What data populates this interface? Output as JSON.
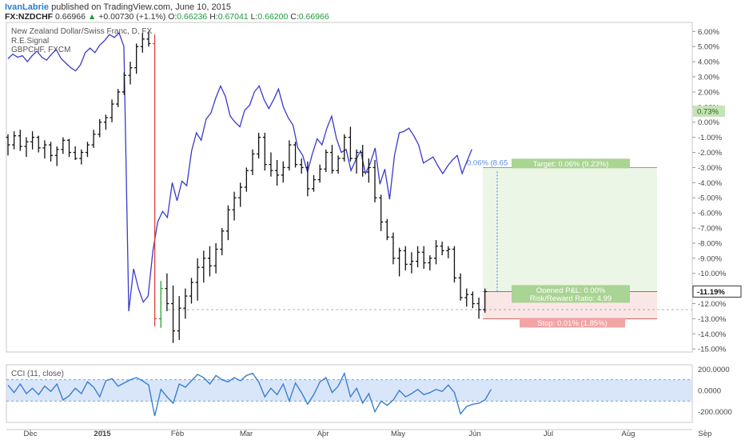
{
  "header": {
    "author": "IvanLabrie",
    "published": "published on TradingView.com, June 10, 2015"
  },
  "symbol_line": {
    "symbol": "FX:NZDCHF",
    "last": "0.66966",
    "change": "+0.00730 (+1.1%)",
    "o_label": "O:",
    "o": "0.66236",
    "h_label": "H:",
    "h": "0.67041",
    "l_label": "L:",
    "l": "0.66200",
    "c_label": "C:",
    "c": "0.66966"
  },
  "legend": {
    "title": "New Zealand Dollar/Swiss Franc, D, FX",
    "indicator": "R.E.Signal",
    "compare": "GBPCHF, FXCM"
  },
  "colors": {
    "up": "#2ca02c",
    "down": "#e0403a",
    "bar": "#111111",
    "compare_line": "#3a3acc",
    "cci_line": "#3a7fd0",
    "cci_band": "#cfe0f7",
    "target_box": "#eaf5e4",
    "stop_box": "#fbe3e3",
    "target_label": "#a9d493",
    "stop_label": "#f2a3a3"
  },
  "chart_data": {
    "type": "line",
    "main_axis": {
      "unit": "%",
      "ylim": [
        -15.2,
        6.6
      ],
      "ticks": [
        "6.00%",
        "5.00%",
        "4.00%",
        "3.00%",
        "2.00%",
        "1.00%",
        "0.00%",
        "-1.00%",
        "-2.00%",
        "-3.00%",
        "-4.00%",
        "-5.00%",
        "-6.00%",
        "-7.00%",
        "-8.00%",
        "-9.00%",
        "-10.00%",
        "-11.00%",
        "-12.00%",
        "-13.00%",
        "-14.00%",
        "-15.00%"
      ]
    },
    "x_labels": [
      "Dec",
      "2015",
      "Feb",
      "Mar",
      "Apr",
      "May",
      "Jun",
      "Jul",
      "Aug",
      "Sep"
    ],
    "price_tag": "-11.19%",
    "compare_tag": "0.73%",
    "position": {
      "target_label": "Target: 0.06% (9.23%)",
      "entry_text": "0.06% (8.65",
      "pnl_label": "Opened P&L: 0.00%",
      "rr_label": "Risk/Reward Ratio: 4.99",
      "stop_label": "Stop: 0.01% (1.85%)",
      "target_pct": -3.0,
      "entry_pct": -11.2,
      "stop_pct": -13.0
    },
    "series": [
      {
        "name": "NZDCHF",
        "kind": "ohlc",
        "values": [
          [
            -1.0,
            -0.8,
            -2.2,
            -1.5
          ],
          [
            -1.5,
            -0.6,
            -1.8,
            -0.9
          ],
          [
            -0.9,
            -0.5,
            -1.9,
            -1.6
          ],
          [
            -1.6,
            -1.0,
            -2.3,
            -1.3
          ],
          [
            -1.3,
            -0.6,
            -1.8,
            -1.0
          ],
          [
            -1.0,
            -0.9,
            -2.0,
            -1.7
          ],
          [
            -1.7,
            -1.2,
            -2.4,
            -1.5
          ],
          [
            -1.5,
            -1.3,
            -2.6,
            -2.2
          ],
          [
            -2.2,
            -1.6,
            -2.9,
            -1.8
          ],
          [
            -1.8,
            -1.0,
            -2.1,
            -1.2
          ],
          [
            -1.2,
            -1.1,
            -2.3,
            -2.0
          ],
          [
            -2.0,
            -1.6,
            -2.5,
            -2.4
          ],
          [
            -2.4,
            -1.8,
            -2.8,
            -2.0
          ],
          [
            -2.0,
            -1.3,
            -2.3,
            -1.5
          ],
          [
            -1.5,
            -0.5,
            -1.7,
            -0.8
          ],
          [
            -0.8,
            0.2,
            -1.0,
            0.0
          ],
          [
            0.0,
            0.5,
            -0.5,
            0.3
          ],
          [
            0.3,
            1.5,
            0.0,
            1.2
          ],
          [
            1.2,
            2.2,
            1.0,
            2.0
          ],
          [
            2.0,
            3.3,
            1.8,
            3.1
          ],
          [
            3.1,
            4.0,
            2.5,
            3.6
          ],
          [
            3.6,
            5.2,
            3.2,
            5.0
          ],
          [
            5.0,
            5.9,
            4.6,
            5.5
          ],
          [
            5.5,
            6.0,
            5.0,
            5.2
          ],
          [
            5.2,
            5.8,
            -13.5,
            -13.0
          ],
          [
            -13.0,
            -10.5,
            -13.6,
            -11.0
          ],
          [
            -11.0,
            -10.0,
            -12.5,
            -12.0
          ],
          [
            -12.0,
            -10.8,
            -14.6,
            -13.8
          ],
          [
            -13.8,
            -11.5,
            -14.4,
            -12.3
          ],
          [
            -12.3,
            -11.0,
            -13.0,
            -11.5
          ],
          [
            -11.5,
            -10.3,
            -12.0,
            -10.6
          ],
          [
            -10.6,
            -9.0,
            -11.8,
            -9.6
          ],
          [
            -9.6,
            -8.5,
            -10.6,
            -9.0
          ],
          [
            -9.0,
            -8.2,
            -10.2,
            -9.5
          ],
          [
            -9.5,
            -8.0,
            -10.0,
            -8.4
          ],
          [
            -8.4,
            -7.0,
            -8.8,
            -7.2
          ],
          [
            -7.2,
            -5.5,
            -7.8,
            -5.8
          ],
          [
            -5.8,
            -4.6,
            -6.5,
            -5.0
          ],
          [
            -5.0,
            -4.0,
            -5.6,
            -4.3
          ],
          [
            -4.3,
            -3.0,
            -4.6,
            -3.2
          ],
          [
            -3.2,
            -1.8,
            -3.5,
            -2.1
          ],
          [
            -2.1,
            -0.7,
            -2.4,
            -1.0
          ],
          [
            -1.0,
            -0.7,
            -3.2,
            -2.8
          ],
          [
            -2.8,
            -2.0,
            -3.6,
            -3.2
          ],
          [
            -3.2,
            -2.5,
            -4.2,
            -3.5
          ],
          [
            -3.5,
            -2.6,
            -4.0,
            -3.0
          ],
          [
            -3.0,
            -1.2,
            -3.2,
            -1.5
          ],
          [
            -1.5,
            -1.3,
            -3.0,
            -2.8
          ],
          [
            -2.8,
            -2.4,
            -3.4,
            -3.0
          ],
          [
            -3.0,
            -2.6,
            -4.9,
            -4.4
          ],
          [
            -4.4,
            -3.5,
            -4.6,
            -3.8
          ],
          [
            -3.8,
            -2.8,
            -4.0,
            -3.1
          ],
          [
            -3.1,
            -1.8,
            -3.3,
            -2.0
          ],
          [
            -2.0,
            -1.5,
            -3.4,
            -3.2
          ],
          [
            -3.2,
            -2.2,
            -3.4,
            -2.4
          ],
          [
            -2.4,
            -0.8,
            -2.6,
            -1.0
          ],
          [
            -1.0,
            -0.3,
            -2.6,
            -2.4
          ],
          [
            -2.4,
            -1.8,
            -3.4,
            -2.0
          ],
          [
            -2.0,
            -1.5,
            -3.6,
            -3.3
          ],
          [
            -3.3,
            -2.4,
            -4.0,
            -3.0
          ],
          [
            -3.0,
            -2.5,
            -5.3,
            -5.0
          ],
          [
            -5.0,
            -4.8,
            -7.2,
            -6.6
          ],
          [
            -6.6,
            -6.4,
            -7.8,
            -7.6
          ],
          [
            -7.6,
            -7.3,
            -9.4,
            -9.0
          ],
          [
            -9.0,
            -8.3,
            -10.2,
            -8.5
          ],
          [
            -8.5,
            -8.2,
            -9.8,
            -9.4
          ],
          [
            -9.4,
            -8.6,
            -10.0,
            -9.2
          ],
          [
            -9.2,
            -8.2,
            -9.6,
            -8.6
          ],
          [
            -8.6,
            -8.2,
            -9.7,
            -9.3
          ],
          [
            -9.3,
            -8.8,
            -9.8,
            -9.0
          ],
          [
            -9.0,
            -7.8,
            -9.4,
            -8.2
          ],
          [
            -8.2,
            -7.9,
            -8.8,
            -8.5
          ],
          [
            -8.5,
            -8.2,
            -9.0,
            -8.4
          ],
          [
            -8.4,
            -8.2,
            -10.6,
            -10.3
          ],
          [
            -10.3,
            -10.0,
            -11.8,
            -11.6
          ],
          [
            -11.6,
            -11.0,
            -12.2,
            -11.4
          ],
          [
            -11.4,
            -11.2,
            -12.3,
            -12.0
          ],
          [
            -12.0,
            -11.6,
            -13.0,
            -12.4
          ],
          [
            -12.4,
            -11.0,
            -12.6,
            -11.2
          ]
        ]
      },
      {
        "name": "GBPCHF, FXCM",
        "kind": "line",
        "values": [
          4.2,
          4.5,
          4.3,
          4.4,
          4.0,
          4.4,
          4.7,
          4.3,
          4.1,
          4.5,
          4.8,
          4.2,
          3.9,
          3.6,
          3.4,
          3.8,
          4.6,
          4.9,
          4.6,
          5.1,
          5.4,
          5.8,
          5.6,
          5.9,
          5.0,
          -12.5,
          -9.7,
          -11.0,
          -11.9,
          -11.5,
          -8.5,
          -6.6,
          -5.9,
          -6.3,
          -4.0,
          -5.2,
          -3.9,
          -4.2,
          -1.9,
          -0.7,
          -1.2,
          0.2,
          0.6,
          1.6,
          2.4,
          1.7,
          0.4,
          0.0,
          -0.3,
          0.8,
          1.1,
          2.0,
          2.4,
          1.5,
          0.9,
          1.5,
          2.2,
          1.0,
          0.3,
          -0.2,
          -1.7,
          -2.2,
          -3.3,
          -2.1,
          -1.1,
          -1.5,
          -0.4,
          0.4,
          -1.1,
          -2.0,
          -1.8,
          -3.2,
          -2.5,
          -1.9,
          -3.4,
          -2.7,
          -1.7,
          -4.1,
          -3.1,
          -5.1,
          -2.2,
          -0.7,
          -0.6,
          -0.4,
          -0.9,
          -1.5,
          -2.7,
          -2.5,
          -2.3,
          -2.9,
          -3.4,
          -2.9,
          -2.5,
          -2.2,
          -3.4,
          -2.6,
          -1.8
        ],
        "x_start": 0,
        "x_step": 0.79
      }
    ],
    "cci": {
      "label": "CCI (11, close)",
      "ylim": [
        -300,
        240
      ],
      "ticks": [
        "200.0000",
        "0.0000",
        "-200.0000"
      ],
      "band": [
        100,
        -100
      ],
      "values": [
        50,
        -20,
        60,
        -30,
        20,
        -40,
        40,
        -10,
        60,
        -90,
        -50,
        20,
        -30,
        80,
        30,
        -60,
        90,
        110,
        40,
        70,
        100,
        120,
        90,
        50,
        -240,
        10,
        -60,
        -120,
        60,
        30,
        90,
        150,
        120,
        60,
        140,
        100,
        80,
        120,
        90,
        140,
        160,
        80,
        -60,
        20,
        -40,
        60,
        -100,
        70,
        -20,
        -130,
        -40,
        80,
        120,
        -20,
        40,
        160,
        -60,
        20,
        -120,
        -30,
        -200,
        -100,
        -140,
        -90,
        0,
        -60,
        -30,
        10,
        -40,
        -20,
        10,
        -10,
        50,
        -20,
        -220,
        -150,
        -130,
        -120,
        -90,
        10
      ]
    }
  }
}
